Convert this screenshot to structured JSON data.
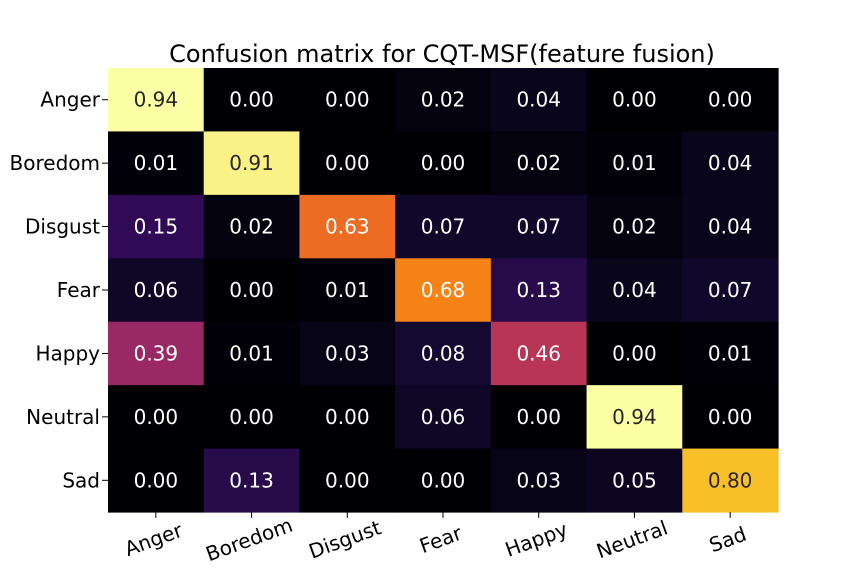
{
  "chart_data": {
    "type": "heatmap",
    "title": "Confusion matrix for CQT-MSF(feature fusion)",
    "colormap": "inferno",
    "xlabel": "",
    "ylabel": "",
    "row_labels": [
      "Anger",
      "Boredom",
      "Disgust",
      "Fear",
      "Happy",
      "Neutral",
      "Sad"
    ],
    "col_labels": [
      "Anger",
      "Boredom",
      "Disgust",
      "Fear",
      "Happy",
      "Neutral",
      "Sad"
    ],
    "values": [
      [
        0.94,
        0.0,
        0.0,
        0.02,
        0.04,
        0.0,
        0.0
      ],
      [
        0.01,
        0.91,
        0.0,
        0.0,
        0.02,
        0.01,
        0.04
      ],
      [
        0.15,
        0.02,
        0.63,
        0.07,
        0.07,
        0.02,
        0.04
      ],
      [
        0.06,
        0.0,
        0.01,
        0.68,
        0.13,
        0.04,
        0.07
      ],
      [
        0.39,
        0.01,
        0.03,
        0.08,
        0.46,
        0.0,
        0.01
      ],
      [
        0.0,
        0.0,
        0.0,
        0.06,
        0.0,
        0.94,
        0.0
      ],
      [
        0.0,
        0.13,
        0.0,
        0.0,
        0.03,
        0.05,
        0.8
      ]
    ],
    "value_range": [
      0,
      0.94
    ],
    "number_format": "0.00"
  }
}
